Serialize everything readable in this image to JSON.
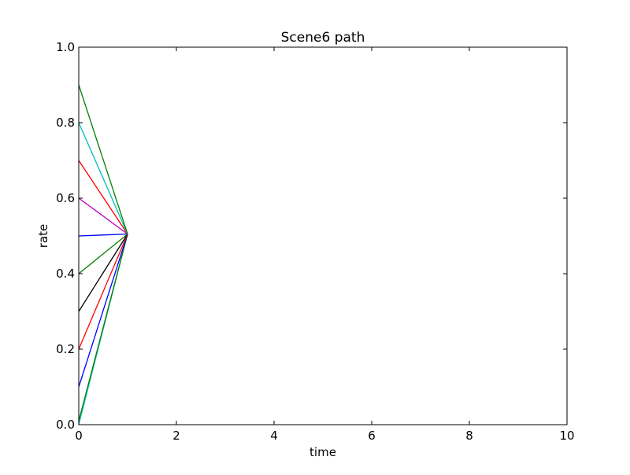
{
  "chart_data": {
    "type": "line",
    "title": "Scene6 path",
    "xlabel": "time",
    "ylabel": "rate",
    "xlim": [
      0,
      10
    ],
    "ylim": [
      0,
      1.0
    ],
    "xticks": [
      0,
      2,
      4,
      6,
      8,
      10
    ],
    "xtick_labels": [
      "0",
      "2",
      "4",
      "6",
      "8",
      "10"
    ],
    "yticks": [
      0,
      0.2,
      0.4,
      0.6,
      0.8,
      1.0
    ],
    "ytick_labels": [
      "0.0",
      "0.2",
      "0.4",
      "0.6",
      "0.8",
      "1.0"
    ],
    "grid": false,
    "legend": "none",
    "series": [
      {
        "color": "#17becf",
        "x": [
          0,
          1
        ],
        "y": [
          0.0,
          0.505
        ]
      },
      {
        "color": "#008000",
        "x": [
          0,
          1
        ],
        "y": [
          0.01,
          0.505
        ]
      },
      {
        "color": "#0000ff",
        "x": [
          0,
          1
        ],
        "y": [
          0.1,
          0.505
        ]
      },
      {
        "color": "#ff0000",
        "x": [
          0,
          1
        ],
        "y": [
          0.2,
          0.505
        ]
      },
      {
        "color": "#000000",
        "x": [
          0,
          1
        ],
        "y": [
          0.3,
          0.505
        ]
      },
      {
        "color": "#008000",
        "x": [
          0,
          1
        ],
        "y": [
          0.4,
          0.505
        ]
      },
      {
        "color": "#0000ff",
        "x": [
          0,
          1
        ],
        "y": [
          0.5,
          0.505
        ]
      },
      {
        "color": "#bf00bf",
        "x": [
          0,
          1
        ],
        "y": [
          0.6,
          0.505
        ]
      },
      {
        "color": "#ff0000",
        "x": [
          0,
          1
        ],
        "y": [
          0.7,
          0.505
        ]
      },
      {
        "color": "#00bfbf",
        "x": [
          0,
          1
        ],
        "y": [
          0.8,
          0.505
        ]
      },
      {
        "color": "#008000",
        "x": [
          0,
          1
        ],
        "y": [
          0.9,
          0.505
        ]
      }
    ]
  }
}
